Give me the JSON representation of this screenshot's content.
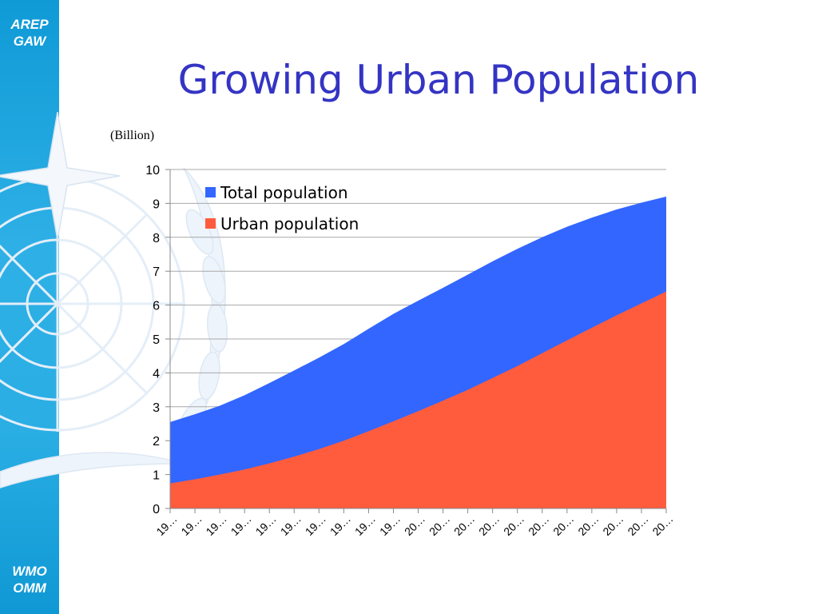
{
  "slide": {
    "title": "Growing Urban Population",
    "brand_top": [
      "AREP",
      "GAW"
    ],
    "brand_bottom": [
      "WMO",
      "OMM"
    ]
  },
  "colors": {
    "sidebar": "#1ea6e0",
    "title": "#3434c4",
    "total": "#3366ff",
    "urban": "#ff5c3d"
  },
  "chart_data": {
    "type": "area",
    "unit_label": "(Billion)",
    "ylim": [
      0,
      10
    ],
    "y_ticks": [
      0,
      1,
      2,
      3,
      4,
      5,
      6,
      7,
      8,
      9,
      10
    ],
    "x_tick_labels": [
      "19…",
      "19…",
      "19…",
      "19…",
      "19…",
      "19…",
      "19…",
      "19…",
      "19…",
      "19…",
      "20…",
      "20…",
      "20…",
      "20…",
      "20…",
      "20…",
      "20…",
      "20…",
      "20…",
      "20…",
      "20…"
    ],
    "grid": true,
    "legend_position": "top-left",
    "series": [
      {
        "name": "Total population",
        "values": [
          2.55,
          2.78,
          3.03,
          3.34,
          3.7,
          4.07,
          4.45,
          4.85,
          5.3,
          5.74,
          6.13,
          6.51,
          6.9,
          7.29,
          7.66,
          8.0,
          8.31,
          8.58,
          8.82,
          9.02,
          9.2
        ]
      },
      {
        "name": "Urban population",
        "values": [
          0.74,
          0.86,
          1.0,
          1.15,
          1.33,
          1.53,
          1.75,
          2.0,
          2.28,
          2.57,
          2.87,
          3.18,
          3.5,
          3.85,
          4.2,
          4.58,
          4.96,
          5.33,
          5.7,
          6.05,
          6.4
        ]
      }
    ]
  }
}
